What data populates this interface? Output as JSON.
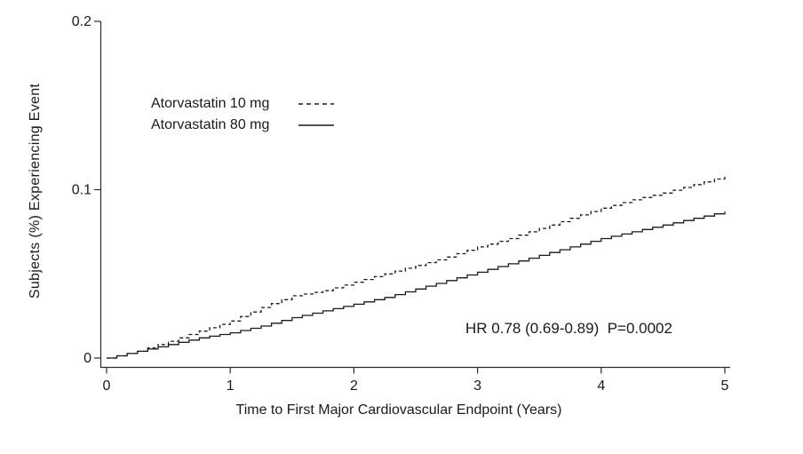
{
  "chart_data": {
    "type": "line",
    "subtype": "kaplan-meier-step-curves",
    "title": "",
    "xlabel": "Time to First Major Cardiovascular Endpoint (Years)",
    "ylabel": "Subjects (%) Experiencing Event",
    "xlim": [
      0,
      5
    ],
    "ylim": [
      0,
      0.2
    ],
    "grid": false,
    "legend_position": "upper-left-inside",
    "xticks": [
      0,
      1,
      2,
      3,
      4,
      5
    ],
    "xtick_labels": [
      "0",
      "1",
      "2",
      "3",
      "4",
      "5"
    ],
    "yticks": [
      0,
      0.1,
      0.2
    ],
    "ytick_labels": [
      "0",
      "0.1",
      "0.2"
    ],
    "x": [
      0,
      0.25,
      0.5,
      0.75,
      1,
      1.25,
      1.5,
      1.75,
      2,
      2.25,
      2.5,
      2.75,
      3,
      3.25,
      3.5,
      3.75,
      4,
      4.25,
      4.5,
      4.75,
      5
    ],
    "series": [
      {
        "name": "Atorvastatin 10 mg",
        "line_style": "dashed",
        "color": "#1a1a1a",
        "values": [
          0,
          0.004,
          0.01,
          0.016,
          0.022,
          0.03,
          0.037,
          0.04,
          0.045,
          0.05,
          0.055,
          0.06,
          0.066,
          0.071,
          0.077,
          0.083,
          0.089,
          0.094,
          0.098,
          0.103,
          0.108
        ]
      },
      {
        "name": "Atorvastatin 80 mg",
        "line_style": "solid",
        "color": "#1a1a1a",
        "values": [
          0,
          0.004,
          0.008,
          0.012,
          0.015,
          0.019,
          0.024,
          0.028,
          0.032,
          0.036,
          0.041,
          0.046,
          0.051,
          0.056,
          0.061,
          0.066,
          0.071,
          0.075,
          0.079,
          0.083,
          0.087
        ]
      }
    ],
    "annotation": "HR 0.78 (0.69-0.89)  P=0.0002",
    "stats": {
      "hazard_ratio": 0.78,
      "ci_low": 0.69,
      "ci_high": 0.89,
      "p_value": 0.0002
    },
    "colors": {
      "line": "#1a1a1a",
      "axis": "#2b2b2b",
      "text": "#1a1a1a",
      "background": "#ffffff"
    }
  }
}
